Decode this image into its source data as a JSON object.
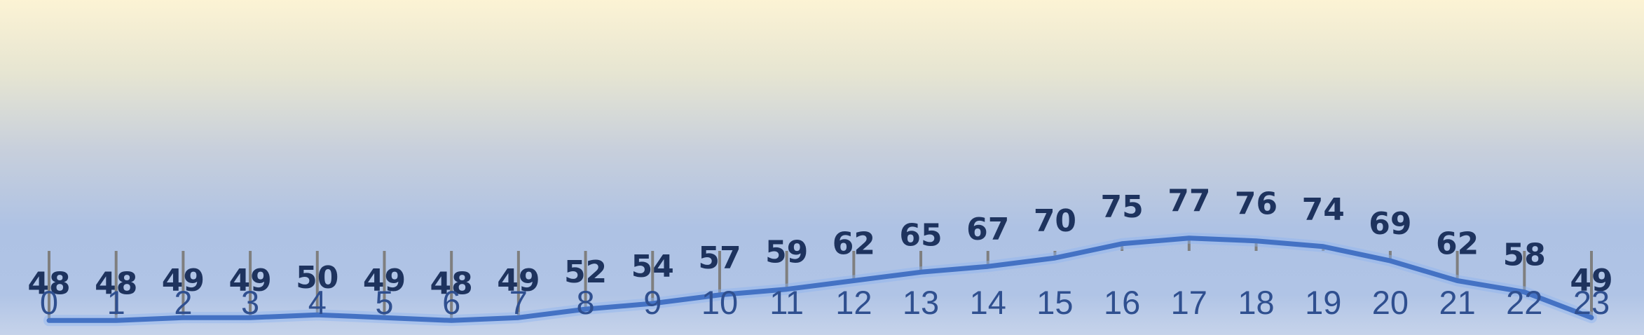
{
  "chart_data": {
    "type": "line",
    "title": "",
    "xlabel": "",
    "ylabel": "",
    "categories": [
      "0",
      "1",
      "2",
      "3",
      "4",
      "5",
      "6",
      "7",
      "8",
      "9",
      "10",
      "11",
      "12",
      "13",
      "14",
      "15",
      "16",
      "17",
      "18",
      "19",
      "20",
      "21",
      "22",
      "23"
    ],
    "series": [
      {
        "values": [
          48,
          48,
          49,
          49,
          50,
          49,
          48,
          49,
          52,
          54,
          57,
          59,
          62,
          65,
          67,
          70,
          75,
          77,
          76,
          74,
          69,
          62,
          58,
          49
        ]
      }
    ],
    "ylim": [
      0,
      160
    ],
    "grid": false,
    "legend": "none",
    "data_labels": "above",
    "drop_lines": true,
    "colors": {
      "line": "#4472c4",
      "data_label": "#1e335e",
      "tick_label": "#2f4f8f",
      "drop_line": "#7f7f7f",
      "background_top": "#fcf3d4",
      "background_bottom": "#aec2e4"
    }
  }
}
